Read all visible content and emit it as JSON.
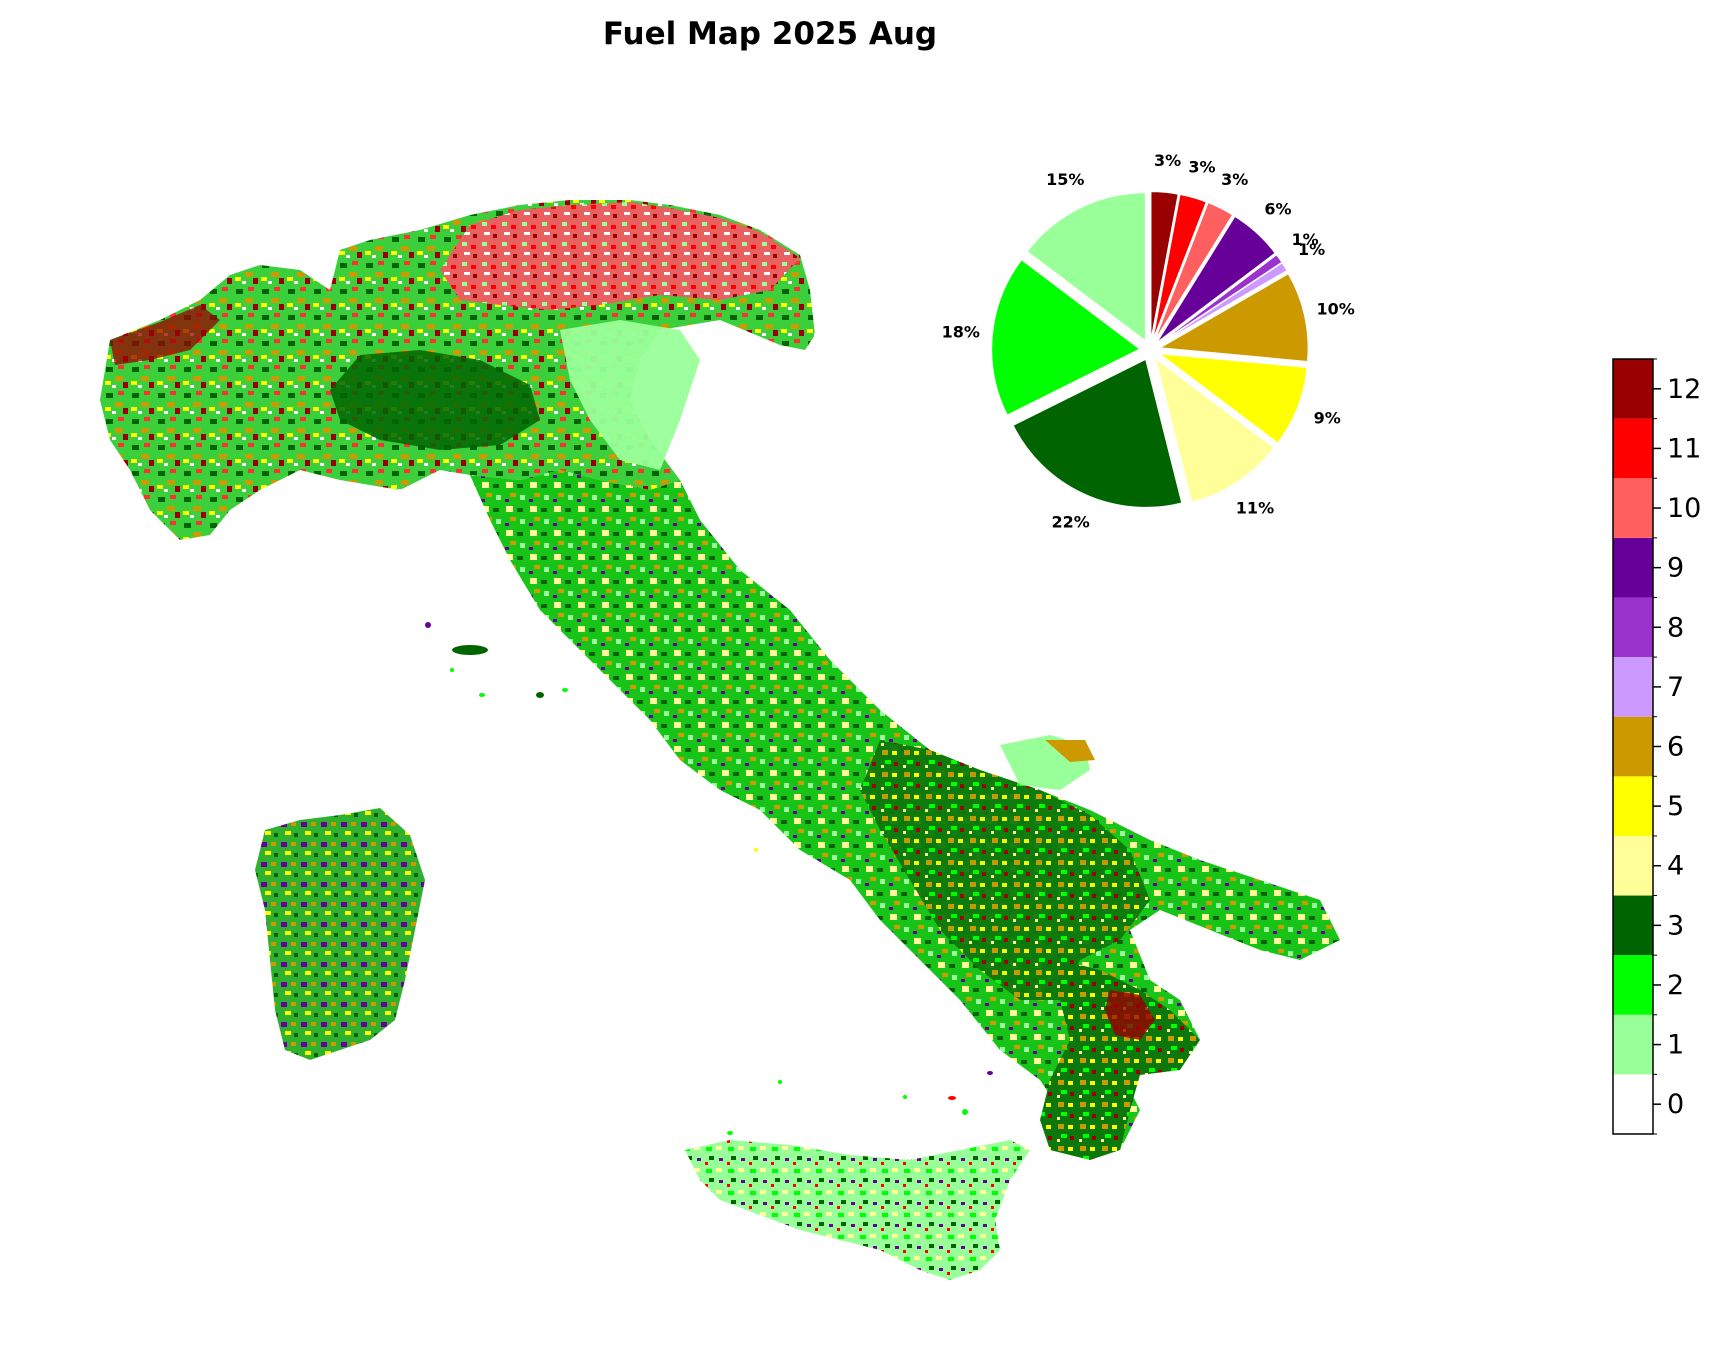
{
  "title": "Fuel Map 2025 Aug",
  "colorbar": {
    "classes": [
      {
        "value": "0",
        "color": "#ffffff"
      },
      {
        "value": "1",
        "color": "#99ff99"
      },
      {
        "value": "2",
        "color": "#00ff00"
      },
      {
        "value": "3",
        "color": "#006400"
      },
      {
        "value": "4",
        "color": "#ffff99"
      },
      {
        "value": "5",
        "color": "#ffff00"
      },
      {
        "value": "6",
        "color": "#cc9900"
      },
      {
        "value": "7",
        "color": "#cc99ff"
      },
      {
        "value": "8",
        "color": "#9933cc"
      },
      {
        "value": "9",
        "color": "#660099"
      },
      {
        "value": "10",
        "color": "#ff5f5f"
      },
      {
        "value": "11",
        "color": "#ff0000"
      },
      {
        "value": "12",
        "color": "#990000"
      }
    ]
  },
  "chart_data": {
    "type": "pie",
    "title": "",
    "slices": [
      {
        "class": 1,
        "percent": 15,
        "label": "15%",
        "color": "#99ff99"
      },
      {
        "class": 2,
        "percent": 18,
        "label": "18%",
        "color": "#00ff00"
      },
      {
        "class": 3,
        "percent": 22,
        "label": "22%",
        "color": "#006400"
      },
      {
        "class": 4,
        "percent": 11,
        "label": "11%",
        "color": "#ffff99"
      },
      {
        "class": 5,
        "percent": 9,
        "label": "9%",
        "color": "#ffff00"
      },
      {
        "class": 6,
        "percent": 10,
        "label": "10%",
        "color": "#cc9900"
      },
      {
        "class": 7,
        "percent": 1,
        "label": "1%",
        "color": "#cc99ff"
      },
      {
        "class": 8,
        "percent": 1,
        "label": "1%",
        "color": "#9933cc"
      },
      {
        "class": 9,
        "percent": 6,
        "label": "6%",
        "color": "#660099"
      },
      {
        "class": 10,
        "percent": 3,
        "label": "3%",
        "color": "#ff5f5f"
      },
      {
        "class": 11,
        "percent": 3,
        "label": "3%",
        "color": "#ff0000"
      },
      {
        "class": 12,
        "percent": 3,
        "label": "3%",
        "color": "#990000"
      }
    ]
  }
}
